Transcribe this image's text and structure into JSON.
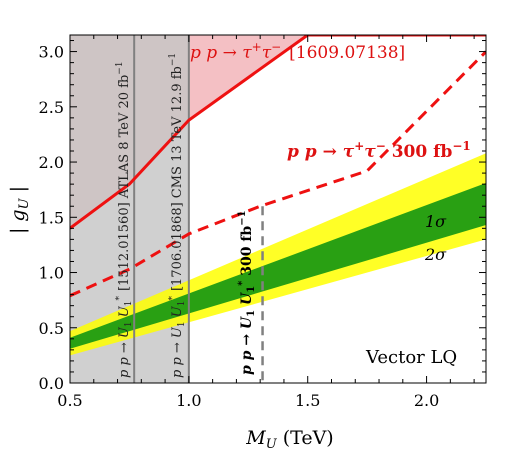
{
  "chart_data": {
    "type": "area",
    "title": "",
    "xlabel_main": "M",
    "xlabel_sub": "U",
    "xlabel_unit": "(TeV)",
    "ylabel_main": "| g",
    "ylabel_sub": "U",
    "ylabel_end": " |",
    "xlim": [
      0.5,
      2.25
    ],
    "ylim": [
      0.0,
      3.15
    ],
    "x_ticks": [
      "0.5",
      "1.0",
      "1.5",
      "2.0"
    ],
    "y_ticks": [
      "0.0",
      "0.5",
      "1.0",
      "1.5",
      "2.0",
      "2.5",
      "3.0"
    ],
    "colors": {
      "excluded_red": "#f4c0c4",
      "grey": "#c6c6c6",
      "yellow": "#ffff00",
      "green": "#129612",
      "red_line": "#ee1111",
      "grey_line": "#808080",
      "annotation_red": "#dd1111"
    },
    "series": [
      {
        "name": "p p → τ⁺τ⁻ [1609.07138]",
        "style": "solid",
        "x": [
          0.5,
          0.75,
          1.0,
          1.5,
          2.25
        ],
        "y": [
          1.4,
          1.8,
          2.38,
          3.15,
          3.15
        ]
      },
      {
        "name": "p p → τ⁺τ⁻ 300 fb⁻¹",
        "style": "dashed",
        "x": [
          0.5,
          0.75,
          1.0,
          1.3,
          1.75,
          2.25
        ],
        "y": [
          0.79,
          1.03,
          1.35,
          1.6,
          1.92,
          3.0
        ]
      },
      {
        "name": "2σ",
        "band": true,
        "x": [
          0.5,
          2.25
        ],
        "lower": [
          0.25,
          1.3
        ],
        "upper": [
          0.47,
          2.08
        ]
      },
      {
        "name": "1σ",
        "band": true,
        "x": [
          0.5,
          2.25
        ],
        "lower": [
          0.31,
          1.43
        ],
        "upper": [
          0.41,
          1.81
        ]
      }
    ],
    "vertical_regions": [
      {
        "label": "p p → U₁ U₁* [1512.01560] ATLAS 8 TeV 20 fb⁻¹",
        "x_min": 0.5,
        "x_max": 0.77
      },
      {
        "label": "p p → U₁ U₁* [1706.01868] CMS 13 TeV 12.9 fb⁻¹",
        "x_min": 0.77,
        "x_max": 1.0
      }
    ],
    "vertical_lines": [
      {
        "label": "p p → U₁ U₁* 300 fb⁻¹",
        "x": 1.31,
        "style": "dashed"
      }
    ],
    "annotations": {
      "tau_current_pp": "p p →",
      "tau_current_tau": "τ",
      "tau_current_sup": "+",
      "tau_current_tau2": "τ",
      "tau_current_sup2": "−",
      "tau_current_ref": "[1609.07138]",
      "tau_future_pp": "p p →",
      "tau_future_tau": "τ",
      "tau_future_sup": "+",
      "tau_future_tau2": "τ",
      "tau_future_sup2": "−",
      "tau_future_lumi": " 300 fb",
      "tau_future_lumi_sup": "−1",
      "atlas_process": "p p → U",
      "atlas_sub": "1",
      "atlas_u2": " U",
      "atlas_sub2": "1",
      "atlas_star": "*",
      "atlas_info": "[1512.01560] ATLAS 8 TeV 20 fb",
      "atlas_info_sup": "−1",
      "cms_process": "p p → U",
      "cms_sub": "1",
      "cms_u2": " U",
      "cms_sub2": "1",
      "cms_star": "*",
      "cms_info": "[1706.01868] CMS 13 TeV 12.9 fb",
      "cms_info_sup": "−1",
      "future_lq_process": "p p → U",
      "future_lq_sub": "1",
      "future_lq_u2": " U",
      "future_lq_sub2": "1",
      "future_lq_star": "*",
      "future_lq_lumi": " 300 fb",
      "future_lq_lumi_sup": "−1",
      "one_sigma": "1σ",
      "two_sigma": "2σ",
      "model": "Vector LQ"
    }
  }
}
